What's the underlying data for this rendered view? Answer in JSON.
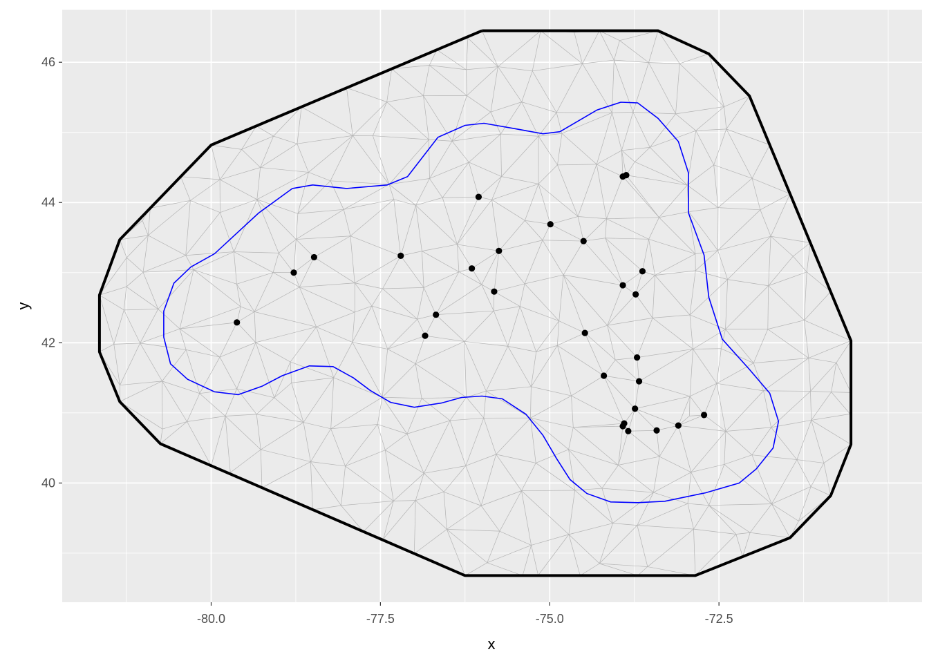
{
  "chart_data": {
    "type": "scatter",
    "title": "",
    "xlabel": "x",
    "ylabel": "y",
    "xlim": [
      -82.2,
      -69.5
    ],
    "ylim": [
      38.3,
      46.75
    ],
    "x_ticks": [
      -80.0,
      -77.5,
      -75.0,
      -72.5
    ],
    "x_tick_labels": [
      "-80.0",
      "-77.5",
      "-75.0",
      "-72.5"
    ],
    "y_ticks": [
      40,
      42,
      44,
      46
    ],
    "y_tick_labels": [
      "40",
      "42",
      "44",
      "46"
    ],
    "grid": true,
    "legend": "none",
    "colors": {
      "panel_background": "#ebebeb",
      "grid_major": "#ffffff",
      "outer_boundary": "#000000",
      "inner_boundary": "#0000ff",
      "mesh": "#b3b3b3",
      "points": "#000000"
    },
    "outer_boundary": [
      [
        -76.0,
        46.45
      ],
      [
        -73.4,
        46.45
      ],
      [
        -72.65,
        46.12
      ],
      [
        -72.05,
        45.52
      ],
      [
        -70.55,
        42.03
      ],
      [
        -70.55,
        40.55
      ],
      [
        -70.85,
        39.82
      ],
      [
        -71.45,
        39.22
      ],
      [
        -72.85,
        38.68
      ],
      [
        -76.25,
        38.68
      ],
      [
        -80.75,
        40.56
      ],
      [
        -81.35,
        41.16
      ],
      [
        -81.65,
        41.87
      ],
      [
        -81.65,
        42.68
      ],
      [
        -81.35,
        43.47
      ],
      [
        -80.0,
        44.82
      ],
      [
        -76.0,
        46.45
      ]
    ],
    "inner_boundary": [
      [
        -78.8,
        44.2
      ],
      [
        -78.5,
        44.25
      ],
      [
        -78.0,
        44.2
      ],
      [
        -77.4,
        44.25
      ],
      [
        -77.1,
        44.37
      ],
      [
        -76.65,
        44.93
      ],
      [
        -76.25,
        45.1
      ],
      [
        -75.97,
        45.13
      ],
      [
        -75.5,
        45.05
      ],
      [
        -75.1,
        44.98
      ],
      [
        -74.85,
        45.01
      ],
      [
        -74.3,
        45.32
      ],
      [
        -73.95,
        45.43
      ],
      [
        -73.7,
        45.42
      ],
      [
        -73.4,
        45.2
      ],
      [
        -73.1,
        44.87
      ],
      [
        -72.95,
        44.42
      ],
      [
        -72.95,
        43.85
      ],
      [
        -72.72,
        43.25
      ],
      [
        -72.65,
        42.65
      ],
      [
        -72.45,
        42.05
      ],
      [
        -72.05,
        41.62
      ],
      [
        -71.75,
        41.28
      ],
      [
        -71.62,
        40.88
      ],
      [
        -71.7,
        40.5
      ],
      [
        -71.95,
        40.2
      ],
      [
        -72.2,
        40.0
      ],
      [
        -72.7,
        39.86
      ],
      [
        -73.3,
        39.74
      ],
      [
        -73.7,
        39.72
      ],
      [
        -74.1,
        39.73
      ],
      [
        -74.45,
        39.85
      ],
      [
        -74.7,
        40.05
      ],
      [
        -74.9,
        40.35
      ],
      [
        -75.1,
        40.68
      ],
      [
        -75.35,
        40.98
      ],
      [
        -75.7,
        41.2
      ],
      [
        -76.0,
        41.24
      ],
      [
        -76.3,
        41.22
      ],
      [
        -76.6,
        41.14
      ],
      [
        -77.0,
        41.08
      ],
      [
        -77.35,
        41.15
      ],
      [
        -77.65,
        41.32
      ],
      [
        -77.9,
        41.5
      ],
      [
        -78.2,
        41.66
      ],
      [
        -78.55,
        41.67
      ],
      [
        -78.95,
        41.53
      ],
      [
        -79.25,
        41.38
      ],
      [
        -79.6,
        41.26
      ],
      [
        -79.95,
        41.3
      ],
      [
        -80.35,
        41.48
      ],
      [
        -80.6,
        41.7
      ],
      [
        -80.7,
        42.08
      ],
      [
        -80.7,
        42.45
      ],
      [
        -80.55,
        42.85
      ],
      [
        -80.3,
        43.08
      ],
      [
        -79.95,
        43.27
      ],
      [
        -79.3,
        43.85
      ],
      [
        -78.8,
        44.2
      ]
    ],
    "points": [
      [
        -79.62,
        42.29
      ],
      [
        -78.78,
        43.0
      ],
      [
        -78.48,
        43.22
      ],
      [
        -77.2,
        43.24
      ],
      [
        -76.84,
        42.1
      ],
      [
        -76.68,
        42.4
      ],
      [
        -76.15,
        43.06
      ],
      [
        -76.05,
        44.08
      ],
      [
        -75.82,
        42.73
      ],
      [
        -75.75,
        43.31
      ],
      [
        -74.99,
        43.69
      ],
      [
        -74.5,
        43.45
      ],
      [
        -74.48,
        42.14
      ],
      [
        -74.2,
        41.53
      ],
      [
        -73.92,
        44.37
      ],
      [
        -73.87,
        44.39
      ],
      [
        -73.92,
        42.82
      ],
      [
        -73.73,
        42.69
      ],
      [
        -73.63,
        43.02
      ],
      [
        -73.71,
        41.79
      ],
      [
        -73.68,
        41.45
      ],
      [
        -73.74,
        41.06
      ],
      [
        -73.9,
        40.85
      ],
      [
        -73.92,
        40.81
      ],
      [
        -73.84,
        40.74
      ],
      [
        -73.42,
        40.75
      ],
      [
        -73.1,
        40.82
      ],
      [
        -72.72,
        40.97
      ]
    ]
  }
}
